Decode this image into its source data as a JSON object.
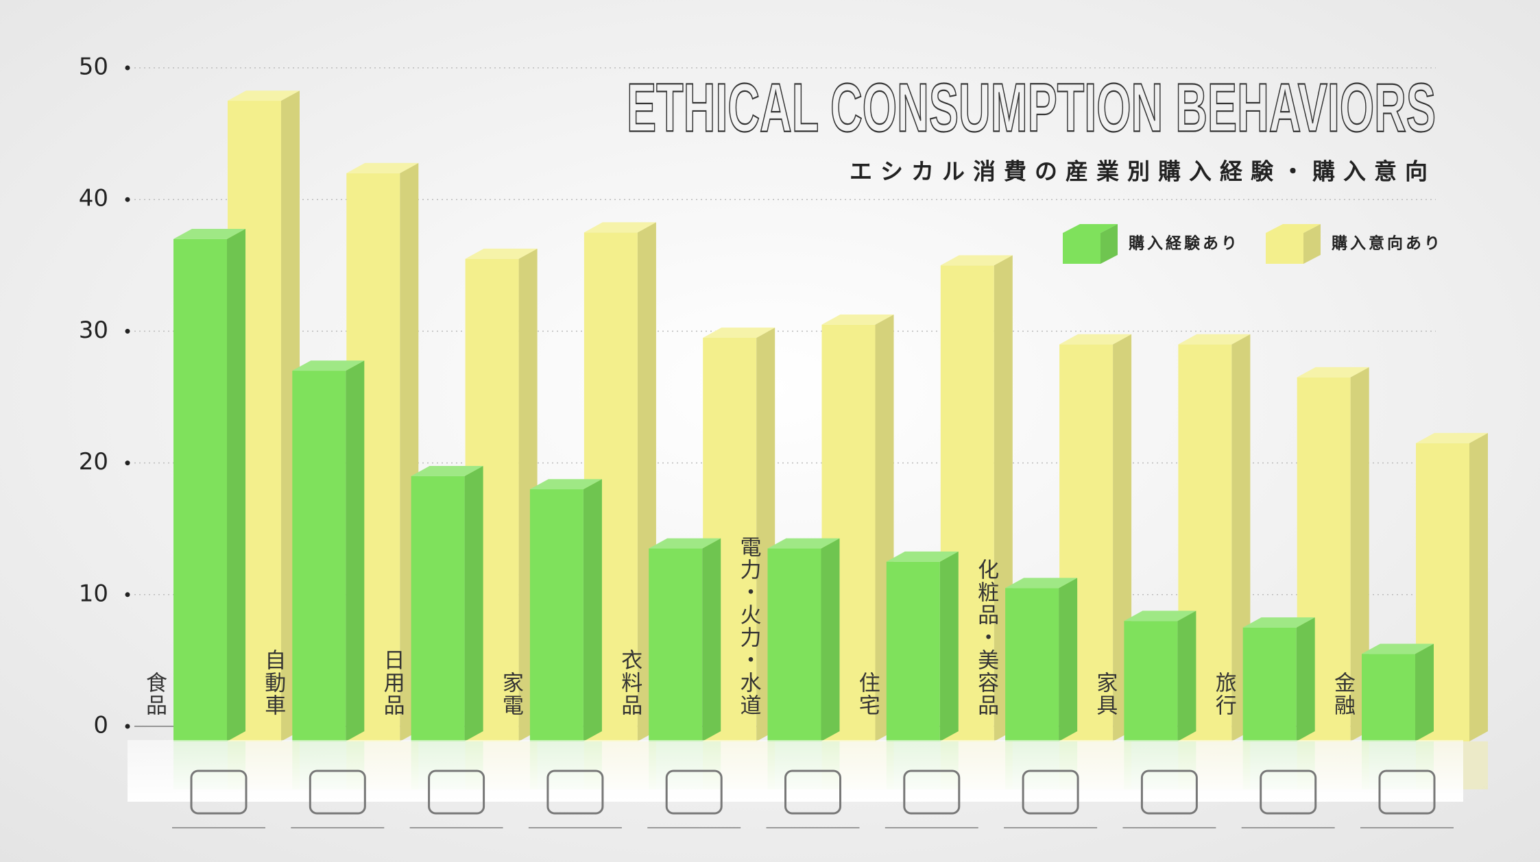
{
  "chart_data": {
    "type": "bar3d",
    "title": "ETHICAL CONSUMPTION BEHAVIORS",
    "subtitle": "エシカル消費の産業別購入経験・購入意向",
    "categories": [
      "食品",
      "自動車",
      "日用品",
      "家電",
      "衣料品",
      "電力・火力・水道",
      "住宅",
      "化粧品・美容品",
      "家具",
      "旅行",
      "金融"
    ],
    "series": [
      {
        "name": "購入経験あり",
        "color": "#7fe15c",
        "values": [
          37,
          27,
          19,
          18,
          13.5,
          13.5,
          12.5,
          10.5,
          8,
          7.5,
          5.5
        ]
      },
      {
        "name": "購入意向あり",
        "color": "#f3ef8c",
        "values": [
          47.5,
          42,
          35.5,
          37.5,
          29.5,
          30.5,
          35,
          29,
          29,
          26.5,
          21.5
        ]
      }
    ],
    "ylim": [
      0,
      50
    ],
    "yticks": [
      0,
      10,
      20,
      30,
      40,
      50
    ],
    "grid": true
  }
}
